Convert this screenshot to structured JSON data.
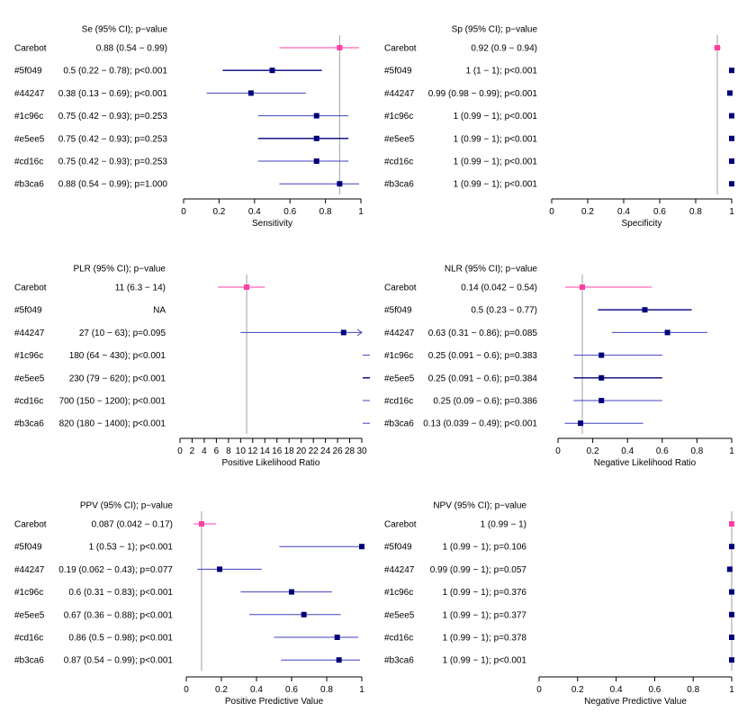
{
  "chart_data": [
    {
      "type": "forest",
      "title": "Se (95% CI); p−value",
      "xlabel": "Sensitivity",
      "xlim": [
        0,
        1
      ],
      "ticks": [
        0,
        0.2,
        0.4,
        0.6,
        0.8,
        1
      ],
      "tick_labels": [
        "0",
        "0.2",
        "0.4",
        "0.6",
        "0.8",
        "1"
      ],
      "reference": 0.88,
      "rows": [
        {
          "name": "Carebot",
          "label": "0.88 (0.54 − 0.99)",
          "est": 0.88,
          "lo": 0.54,
          "hi": 0.99,
          "color": "#ff3fa4",
          "lw": 1
        },
        {
          "name": "#5f049",
          "label": "0.5 (0.22 − 0.78); p<0.001",
          "est": 0.5,
          "lo": 0.22,
          "hi": 0.78,
          "color": "#00007a",
          "lw": 1.4
        },
        {
          "name": "#44247",
          "label": "0.38 (0.13 − 0.69); p<0.001",
          "est": 0.38,
          "lo": 0.13,
          "hi": 0.69,
          "color": "#4040c0",
          "lw": 1
        },
        {
          "name": "#1c96c",
          "label": "0.75 (0.42 − 0.93); p=0.253",
          "est": 0.75,
          "lo": 0.42,
          "hi": 0.93,
          "color": "#4040c0",
          "lw": 1
        },
        {
          "name": "#e5ee5",
          "label": "0.75 (0.42 − 0.93); p=0.253",
          "est": 0.75,
          "lo": 0.42,
          "hi": 0.93,
          "color": "#00007a",
          "lw": 1.4
        },
        {
          "name": "#cd16c",
          "label": "0.75 (0.42 − 0.93); p=0.253",
          "est": 0.75,
          "lo": 0.42,
          "hi": 0.93,
          "color": "#4040c0",
          "lw": 1
        },
        {
          "name": "#b3ca6",
          "label": "0.88 (0.54 − 0.99); p=1.000",
          "est": 0.88,
          "lo": 0.54,
          "hi": 0.99,
          "color": "#4040c0",
          "lw": 1
        }
      ]
    },
    {
      "type": "forest",
      "title": "Sp (95% CI); p−value",
      "xlabel": "Specificity",
      "xlim": [
        0,
        1
      ],
      "ticks": [
        0,
        0.2,
        0.4,
        0.6,
        0.8,
        1
      ],
      "tick_labels": [
        "0",
        "0.2",
        "0.4",
        "0.6",
        "0.8",
        "1"
      ],
      "reference": 0.92,
      "rows": [
        {
          "name": "Carebot",
          "label": "0.92 (0.9 − 0.94)",
          "est": 0.92,
          "lo": 0.9,
          "hi": 0.94,
          "color": "#ff3fa4",
          "lw": 1
        },
        {
          "name": "#5f049",
          "label": "1 (1 − 1); p<0.001",
          "est": 1,
          "lo": 1,
          "hi": 1,
          "color": "#00007a",
          "lw": 1.4
        },
        {
          "name": "#44247",
          "label": "0.99 (0.98 − 0.99); p<0.001",
          "est": 0.99,
          "lo": 0.98,
          "hi": 0.99,
          "color": "#4040c0",
          "lw": 1
        },
        {
          "name": "#1c96c",
          "label": "1 (0.99 − 1); p<0.001",
          "est": 1,
          "lo": 0.99,
          "hi": 1,
          "color": "#4040c0",
          "lw": 1
        },
        {
          "name": "#e5ee5",
          "label": "1 (0.99 − 1); p<0.001",
          "est": 1,
          "lo": 0.99,
          "hi": 1,
          "color": "#00007a",
          "lw": 1.4
        },
        {
          "name": "#cd16c",
          "label": "1 (0.99 − 1); p<0.001",
          "est": 1,
          "lo": 0.99,
          "hi": 1,
          "color": "#4040c0",
          "lw": 1
        },
        {
          "name": "#b3ca6",
          "label": "1 (0.99 − 1); p<0.001",
          "est": 1,
          "lo": 0.99,
          "hi": 1,
          "color": "#4040c0",
          "lw": 1
        }
      ]
    },
    {
      "type": "forest",
      "title": "PLR (95% CI); p−value",
      "xlabel": "Positive Likelihood Ratio",
      "xlim": [
        0,
        30
      ],
      "ticks": [
        0,
        2,
        4,
        6,
        8,
        10,
        12,
        14,
        16,
        18,
        20,
        22,
        24,
        26,
        28,
        30
      ],
      "tick_labels": [
        "0",
        "2",
        "4",
        "6",
        "8",
        "10",
        "12",
        "14",
        "16",
        "18",
        "20",
        "22",
        "24",
        "26",
        "28",
        "30"
      ],
      "reference": 11,
      "rows": [
        {
          "name": "Carebot",
          "label": "11 (6.3 − 14)",
          "est": 11,
          "lo": 6.3,
          "hi": 14,
          "color": "#ff3fa4",
          "lw": 1
        },
        {
          "name": "#5f049",
          "label": "NA",
          "est": null,
          "lo": null,
          "hi": null,
          "color": "#00007a",
          "lw": 1.4
        },
        {
          "name": "#44247",
          "label": "27 (10 − 63); p=0.095",
          "est": 27,
          "lo": 10,
          "hi": 63,
          "color": "#4040c0",
          "lw": 1
        },
        {
          "name": "#1c96c",
          "label": "180 (64 − 430); p<0.001",
          "est": 180,
          "lo": 64,
          "hi": 430,
          "color": "#4040c0",
          "lw": 1
        },
        {
          "name": "#e5ee5",
          "label": "230 (79 − 620); p<0.001",
          "est": 230,
          "lo": 79,
          "hi": 620,
          "color": "#00007a",
          "lw": 1.4
        },
        {
          "name": "#cd16c",
          "label": "700 (150 − 1200); p<0.001",
          "est": 700,
          "lo": 150,
          "hi": 1200,
          "color": "#4040c0",
          "lw": 1
        },
        {
          "name": "#b3ca6",
          "label": "820 (180 − 1400); p<0.001",
          "est": 820,
          "lo": 180,
          "hi": 1400,
          "color": "#4040c0",
          "lw": 1
        }
      ]
    },
    {
      "type": "forest",
      "title": "NLR (95% CI); p−value",
      "xlabel": "Negative Likelihood Ratio",
      "xlim": [
        0,
        1
      ],
      "ticks": [
        0,
        0.2,
        0.4,
        0.6,
        0.8,
        1
      ],
      "tick_labels": [
        "0",
        "0.2",
        "0.4",
        "0.6",
        "0.8",
        "1"
      ],
      "reference": 0.14,
      "rows": [
        {
          "name": "Carebot",
          "label": "0.14 (0.042 − 0.54)",
          "est": 0.14,
          "lo": 0.042,
          "hi": 0.54,
          "color": "#ff3fa4",
          "lw": 1
        },
        {
          "name": "#5f049",
          "label": "0.5 (0.23 − 0.77)",
          "est": 0.5,
          "lo": 0.23,
          "hi": 0.77,
          "color": "#00007a",
          "lw": 1.4
        },
        {
          "name": "#44247",
          "label": "0.63 (0.31 − 0.86); p=0.085",
          "est": 0.63,
          "lo": 0.31,
          "hi": 0.86,
          "color": "#4040c0",
          "lw": 1
        },
        {
          "name": "#1c96c",
          "label": "0.25 (0.091 − 0.6); p=0.383",
          "est": 0.25,
          "lo": 0.091,
          "hi": 0.6,
          "color": "#4040c0",
          "lw": 1
        },
        {
          "name": "#e5ee5",
          "label": "0.25 (0.091 − 0.6); p=0.384",
          "est": 0.25,
          "lo": 0.091,
          "hi": 0.6,
          "color": "#00007a",
          "lw": 1.4
        },
        {
          "name": "#cd16c",
          "label": "0.25 (0.09 − 0.6); p=0.386",
          "est": 0.25,
          "lo": 0.09,
          "hi": 0.6,
          "color": "#4040c0",
          "lw": 1
        },
        {
          "name": "#b3ca6",
          "label": "0.13 (0.039 − 0.49); p<0.001",
          "est": 0.13,
          "lo": 0.039,
          "hi": 0.49,
          "color": "#4040c0",
          "lw": 1
        }
      ]
    },
    {
      "type": "forest",
      "title": "PPV (95% CI); p−value",
      "xlabel": "Positive Predictive Value",
      "xlim": [
        0,
        1
      ],
      "ticks": [
        0,
        0.2,
        0.4,
        0.6,
        0.8,
        1
      ],
      "tick_labels": [
        "0",
        "0.2",
        "0.4",
        "0.6",
        "0.8",
        "1"
      ],
      "reference": 0.087,
      "rows": [
        {
          "name": "Carebot",
          "label": "0.087 (0.042 − 0.17)",
          "est": 0.087,
          "lo": 0.042,
          "hi": 0.17,
          "color": "#ff3fa4",
          "lw": 1
        },
        {
          "name": "#5f049",
          "label": "1 (0.53 − 1); p<0.001",
          "est": 1,
          "lo": 0.53,
          "hi": 1,
          "color": "#4040c0",
          "lw": 1
        },
        {
          "name": "#44247",
          "label": "0.19 (0.062 − 0.43); p=0.077",
          "est": 0.19,
          "lo": 0.062,
          "hi": 0.43,
          "color": "#4040c0",
          "lw": 1
        },
        {
          "name": "#1c96c",
          "label": "0.6 (0.31 − 0.83); p<0.001",
          "est": 0.6,
          "lo": 0.31,
          "hi": 0.83,
          "color": "#4040c0",
          "lw": 1
        },
        {
          "name": "#e5ee5",
          "label": "0.67 (0.36 − 0.88); p<0.001",
          "est": 0.67,
          "lo": 0.36,
          "hi": 0.88,
          "color": "#4040c0",
          "lw": 1
        },
        {
          "name": "#cd16c",
          "label": "0.86 (0.5 − 0.98); p<0.001",
          "est": 0.86,
          "lo": 0.5,
          "hi": 0.98,
          "color": "#4040c0",
          "lw": 1
        },
        {
          "name": "#b3ca6",
          "label": "0.87 (0.54 − 0.99); p<0.001",
          "est": 0.87,
          "lo": 0.54,
          "hi": 0.99,
          "color": "#4040c0",
          "lw": 1
        }
      ]
    },
    {
      "type": "forest",
      "title": "NPV (95% CI); p−value",
      "xlabel": "Negative Predictive Value",
      "xlim": [
        0,
        1
      ],
      "ticks": [
        0,
        0.2,
        0.4,
        0.6,
        0.8,
        1
      ],
      "tick_labels": [
        "0",
        "0.2",
        "0.4",
        "0.6",
        "0.8",
        "1"
      ],
      "reference": 1,
      "rows": [
        {
          "name": "Carebot",
          "label": "1 (0.99 − 1)",
          "est": 1,
          "lo": 0.99,
          "hi": 1,
          "color": "#ff3fa4",
          "lw": 1
        },
        {
          "name": "#5f049",
          "label": "1 (0.99 − 1); p=0.106",
          "est": 1,
          "lo": 0.99,
          "hi": 1,
          "color": "#00007a",
          "lw": 1.4
        },
        {
          "name": "#44247",
          "label": "0.99 (0.99 − 1); p=0.057",
          "est": 0.99,
          "lo": 0.99,
          "hi": 1,
          "color": "#4040c0",
          "lw": 1
        },
        {
          "name": "#1c96c",
          "label": "1 (0.99 − 1); p=0.376",
          "est": 1,
          "lo": 0.99,
          "hi": 1,
          "color": "#4040c0",
          "lw": 1
        },
        {
          "name": "#e5ee5",
          "label": "1 (0.99 − 1); p=0.377",
          "est": 1,
          "lo": 0.99,
          "hi": 1,
          "color": "#00007a",
          "lw": 1.4
        },
        {
          "name": "#cd16c",
          "label": "1 (0.99 − 1); p=0.378",
          "est": 1,
          "lo": 0.99,
          "hi": 1,
          "color": "#4040c0",
          "lw": 1
        },
        {
          "name": "#b3ca6",
          "label": "1 (0.99 − 1); p<0.001",
          "est": 1,
          "lo": 0.99,
          "hi": 1,
          "color": "#4040c0",
          "lw": 1
        }
      ]
    }
  ]
}
